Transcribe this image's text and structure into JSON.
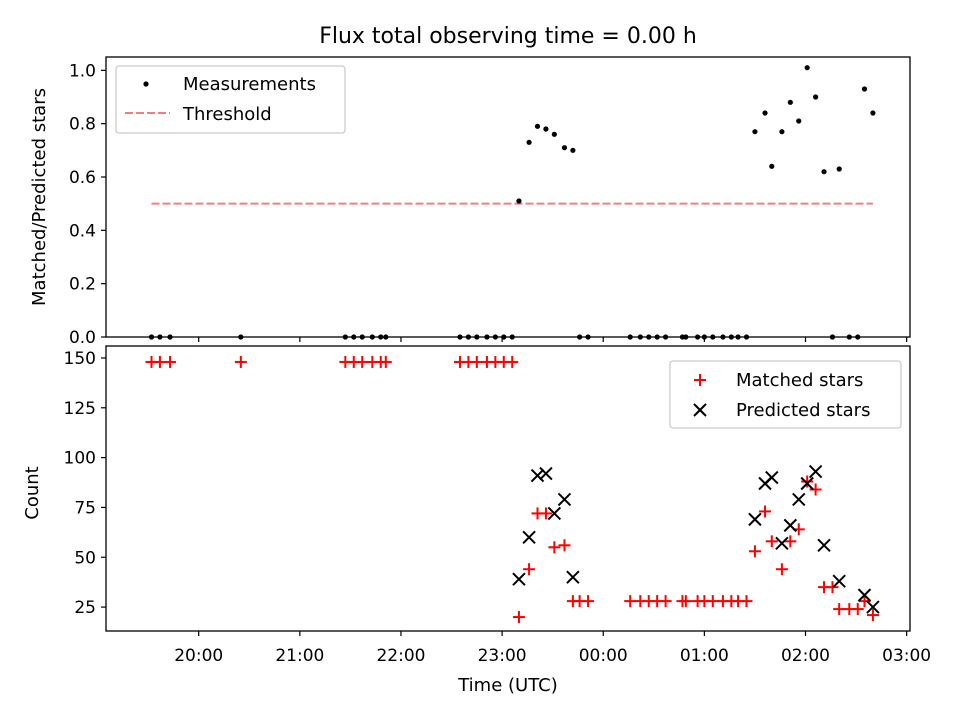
{
  "chart_data": [
    {
      "type": "scatter",
      "title": "Flux total observing time = 0.00 h",
      "xlabel": "",
      "ylabel": "Matched/Predicted stars",
      "xlim": [
        "19:05",
        "03:02"
      ],
      "ylim": [
        0,
        1.05
      ],
      "yticks": [
        "0.0",
        "0.2",
        "0.4",
        "0.6",
        "0.8",
        "1.0"
      ],
      "legend_position": "upper left",
      "series": [
        {
          "name": "Measurements",
          "color": "#000000",
          "marker": "dot",
          "points": [
            [
              "19:32",
              0
            ],
            [
              "19:37",
              0
            ],
            [
              "19:43",
              0
            ],
            [
              "20:25",
              0
            ],
            [
              "21:27",
              0
            ],
            [
              "21:32",
              0
            ],
            [
              "21:37",
              0
            ],
            [
              "21:43",
              0
            ],
            [
              "21:48",
              0
            ],
            [
              "21:51",
              0
            ],
            [
              "22:35",
              0
            ],
            [
              "22:40",
              0
            ],
            [
              "22:45",
              0
            ],
            [
              "22:51",
              0
            ],
            [
              "22:56",
              0
            ],
            [
              "23:01",
              0
            ],
            [
              "23:06",
              0
            ],
            [
              "23:10",
              0.51
            ],
            [
              "23:16",
              0.73
            ],
            [
              "23:21",
              0.79
            ],
            [
              "23:26",
              0.78
            ],
            [
              "23:31",
              0.76
            ],
            [
              "23:37",
              0.71
            ],
            [
              "23:42",
              0.7
            ],
            [
              "23:46",
              0
            ],
            [
              "23:51",
              0
            ],
            [
              "00:16",
              0
            ],
            [
              "00:22",
              0
            ],
            [
              "00:27",
              0
            ],
            [
              "00:32",
              0
            ],
            [
              "00:37",
              0
            ],
            [
              "00:47",
              0
            ],
            [
              "00:49",
              0
            ],
            [
              "00:56",
              0
            ],
            [
              "01:00",
              0
            ],
            [
              "01:05",
              0
            ],
            [
              "01:11",
              0
            ],
            [
              "01:16",
              0
            ],
            [
              "01:20",
              0
            ],
            [
              "01:25",
              0
            ],
            [
              "01:30",
              0.77
            ],
            [
              "01:36",
              0.84
            ],
            [
              "01:40",
              0.64
            ],
            [
              "01:46",
              0.77
            ],
            [
              "01:51",
              0.88
            ],
            [
              "01:56",
              0.81
            ],
            [
              "02:01",
              1.01
            ],
            [
              "02:06",
              0.9
            ],
            [
              "02:11",
              0.62
            ],
            [
              "02:16",
              0
            ],
            [
              "02:20",
              0.63
            ],
            [
              "02:26",
              0
            ],
            [
              "02:31",
              0
            ],
            [
              "02:35",
              0.93
            ],
            [
              "02:40",
              0.84
            ]
          ]
        },
        {
          "name": "Threshold",
          "color": "#f08080",
          "style": "dashed",
          "points": [
            [
              "19:32",
              0.5
            ],
            [
              "02:40",
              0.5
            ]
          ]
        }
      ]
    },
    {
      "type": "scatter",
      "title": "",
      "xlabel": "Time (UTC)",
      "ylabel": "Count",
      "xlim": [
        "19:05",
        "03:02"
      ],
      "ylim": [
        13,
        156
      ],
      "xticks": [
        "20:00",
        "21:00",
        "22:00",
        "23:00",
        "00:00",
        "01:00",
        "02:00",
        "03:00"
      ],
      "yticks": [
        "25",
        "50",
        "75",
        "100",
        "125",
        "150"
      ],
      "legend_position": "upper right",
      "series": [
        {
          "name": "Matched stars",
          "color": "#ff0000",
          "marker": "plus",
          "points": [
            [
              "19:32",
              148
            ],
            [
              "19:37",
              148
            ],
            [
              "19:43",
              148
            ],
            [
              "20:25",
              148
            ],
            [
              "21:27",
              148
            ],
            [
              "21:32",
              148
            ],
            [
              "21:37",
              148
            ],
            [
              "21:43",
              148
            ],
            [
              "21:48",
              148
            ],
            [
              "21:51",
              148
            ],
            [
              "22:35",
              148
            ],
            [
              "22:40",
              148
            ],
            [
              "22:45",
              148
            ],
            [
              "22:51",
              148
            ],
            [
              "22:56",
              148
            ],
            [
              "23:01",
              148
            ],
            [
              "23:06",
              148
            ],
            [
              "23:10",
              20
            ],
            [
              "23:16",
              44
            ],
            [
              "23:21",
              72
            ],
            [
              "23:26",
              72
            ],
            [
              "23:31",
              55
            ],
            [
              "23:37",
              56
            ],
            [
              "23:42",
              28
            ],
            [
              "23:46",
              28
            ],
            [
              "23:51",
              28
            ],
            [
              "00:16",
              28
            ],
            [
              "00:22",
              28
            ],
            [
              "00:27",
              28
            ],
            [
              "00:32",
              28
            ],
            [
              "00:37",
              28
            ],
            [
              "00:47",
              28
            ],
            [
              "00:49",
              28
            ],
            [
              "00:56",
              28
            ],
            [
              "01:00",
              28
            ],
            [
              "01:05",
              28
            ],
            [
              "01:11",
              28
            ],
            [
              "01:16",
              28
            ],
            [
              "01:20",
              28
            ],
            [
              "01:25",
              28
            ],
            [
              "01:30",
              53
            ],
            [
              "01:36",
              73
            ],
            [
              "01:40",
              58
            ],
            [
              "01:46",
              44
            ],
            [
              "01:51",
              58
            ],
            [
              "01:56",
              64
            ],
            [
              "02:01",
              88
            ],
            [
              "02:06",
              84
            ],
            [
              "02:11",
              35
            ],
            [
              "02:16",
              35
            ],
            [
              "02:20",
              24
            ],
            [
              "02:26",
              24
            ],
            [
              "02:31",
              24
            ],
            [
              "02:35",
              28
            ],
            [
              "02:40",
              21
            ]
          ]
        },
        {
          "name": "Predicted stars",
          "color": "#000000",
          "marker": "x",
          "points": [
            [
              "23:10",
              39
            ],
            [
              "23:16",
              60
            ],
            [
              "23:21",
              91
            ],
            [
              "23:26",
              92
            ],
            [
              "23:31",
              72
            ],
            [
              "23:37",
              79
            ],
            [
              "23:42",
              40
            ],
            [
              "01:30",
              69
            ],
            [
              "01:36",
              87
            ],
            [
              "01:40",
              90
            ],
            [
              "01:46",
              57
            ],
            [
              "01:51",
              66
            ],
            [
              "01:56",
              79
            ],
            [
              "02:01",
              87
            ],
            [
              "02:06",
              93
            ],
            [
              "02:11",
              56
            ],
            [
              "02:20",
              38
            ],
            [
              "02:35",
              31
            ],
            [
              "02:40",
              25
            ]
          ]
        }
      ]
    }
  ]
}
